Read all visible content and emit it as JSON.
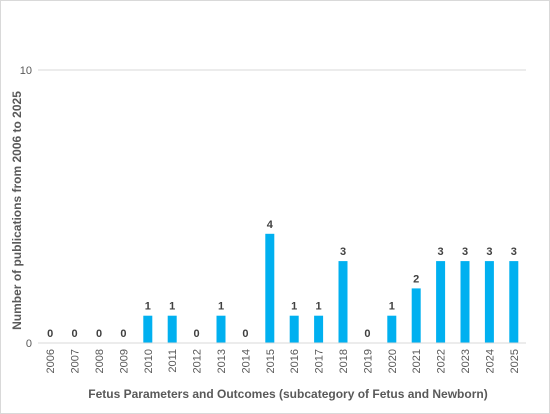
{
  "chart_data": {
    "type": "bar",
    "categories": [
      "2006",
      "2007",
      "2008",
      "2009",
      "2010",
      "2011",
      "2012",
      "2013",
      "2014",
      "2015",
      "2016",
      "2017",
      "2018",
      "2019",
      "2020",
      "2021",
      "2022",
      "2023",
      "2024",
      "2025"
    ],
    "values": [
      0,
      0,
      0,
      0,
      1,
      1,
      0,
      1,
      0,
      4,
      1,
      1,
      3,
      0,
      1,
      2,
      3,
      3,
      3,
      3
    ],
    "data_labels": [
      "0",
      "0",
      "0",
      "0",
      "1",
      "1",
      "0",
      "1",
      "0",
      "4",
      "1",
      "1",
      "3",
      "0",
      "1",
      "2",
      "3",
      "3",
      "3",
      "3"
    ],
    "xlabel": "Fetus Parameters and Outcomes (subcategory of Fetus and Newborn)",
    "ylabel": "Number of publications from 2006 to 2025",
    "ylim": [
      0,
      10
    ],
    "yticks": [
      "0",
      "10"
    ],
    "grid": "horizontal",
    "bar_color": "#00b0f0",
    "gridline_color": "#d9d9d9",
    "legend": "none"
  }
}
